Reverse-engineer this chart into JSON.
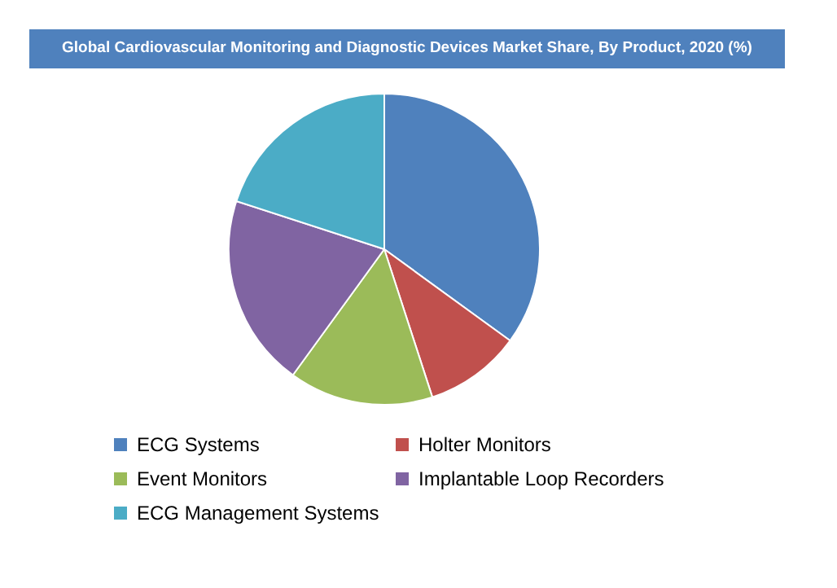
{
  "chart_data": {
    "type": "pie",
    "title": "Global Cardiovascular Monitoring and Diagnostic Devices Market Share, By Product, 2020 (%)",
    "categories": [
      "ECG Systems",
      "Holter Monitors",
      "Event Monitors",
      "Implantable Loop Recorders",
      "ECG Management Systems"
    ],
    "values": [
      35,
      10,
      15,
      20,
      20
    ],
    "colors": [
      "#4f81bd",
      "#c0504d",
      "#9bbb59",
      "#8064a2",
      "#4bacc6"
    ],
    "legend": "bottom"
  }
}
